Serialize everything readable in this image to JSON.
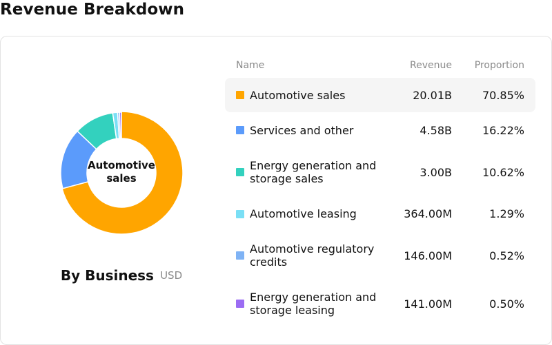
{
  "page": {
    "title": "Revenue Breakdown"
  },
  "chart": {
    "center_label": "Automotive sales",
    "caption_title": "By Business",
    "caption_unit": "USD"
  },
  "table": {
    "headers": {
      "name": "Name",
      "revenue": "Revenue",
      "proportion": "Proportion"
    },
    "rows": [
      {
        "name": "Automotive sales",
        "revenue": "20.01B",
        "proportion": "70.85%",
        "color": "#FFA500"
      },
      {
        "name": "Services and other",
        "revenue": "4.58B",
        "proportion": "16.22%",
        "color": "#5B9BFB"
      },
      {
        "name": "Energy generation and storage sales",
        "revenue": "3.00B",
        "proportion": "10.62%",
        "color": "#33D1BE"
      },
      {
        "name": "Automotive leasing",
        "revenue": "364.00M",
        "proportion": "1.29%",
        "color": "#7ADFF5"
      },
      {
        "name": "Automotive regulatory credits",
        "revenue": "146.00M",
        "proportion": "0.52%",
        "color": "#7FB3F5"
      },
      {
        "name": "Energy generation and storage leasing",
        "revenue": "141.00M",
        "proportion": "0.50%",
        "color": "#9B6CF3"
      }
    ]
  },
  "chart_data": {
    "type": "pie",
    "title": "By Business",
    "unit": "USD",
    "categories": [
      "Automotive sales",
      "Services and other",
      "Energy generation and storage sales",
      "Automotive leasing",
      "Automotive regulatory credits",
      "Energy generation and storage leasing"
    ],
    "values": [
      20010000000,
      4580000000,
      3000000000,
      364000000,
      146000000,
      141000000
    ],
    "percentages": [
      70.85,
      16.22,
      10.62,
      1.29,
      0.52,
      0.5
    ],
    "colors": [
      "#FFA500",
      "#5B9BFB",
      "#33D1BE",
      "#7ADFF5",
      "#7FB3F5",
      "#9B6CF3"
    ],
    "highlighted": "Automotive sales",
    "donut": true
  }
}
